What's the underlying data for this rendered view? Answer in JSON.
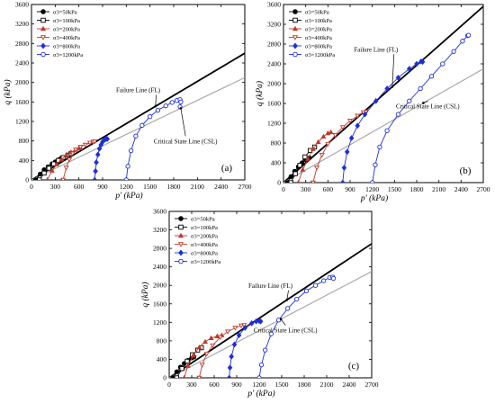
{
  "chart_data": [
    {
      "type": "scatter",
      "panel_label": "(a)",
      "xlabel": "p' (kPa)",
      "ylabel": "q (kPa)",
      "xlim": [
        0,
        2700
      ],
      "ylim": [
        0,
        3600
      ],
      "xticks": [
        "0",
        "300",
        "600",
        "900",
        "1200",
        "1500",
        "1800",
        "2100",
        "2400",
        "2700"
      ],
      "yticks": [
        "0",
        "400",
        "800",
        "1200",
        "1600",
        "2000",
        "2400",
        "2800",
        "3200",
        "3600"
      ],
      "legend": [
        {
          "label": "σ3=50kPa",
          "marker": "filled-circle",
          "color": "#000000"
        },
        {
          "label": "σ3=100kPa",
          "marker": "open-square",
          "color": "#000000"
        },
        {
          "label": "σ3=200kPa",
          "marker": "filled-triangle",
          "color": "#c0392b"
        },
        {
          "label": "σ3=400kPa",
          "marker": "open-triangle-down",
          "color": "#c0392b"
        },
        {
          "label": "σ3=800kPa",
          "marker": "filled-diamond",
          "color": "#1f2fd6"
        },
        {
          "label": "σ3=1200kPa",
          "marker": "open-circle",
          "color": "#1f2fd6"
        }
      ],
      "lines": [
        {
          "name": "Failure Line (FL)",
          "color": "#000000",
          "from": [
            0,
            0
          ],
          "to": [
            2700,
            2600
          ]
        },
        {
          "name": "Critical State Line (CSL)",
          "color": "#aaaaaa",
          "from": [
            0,
            0
          ],
          "to": [
            2700,
            2100
          ]
        }
      ],
      "annotations": [
        {
          "text": "Failure Line (FL)",
          "at": [
            1350,
            1800
          ]
        },
        {
          "text": "Critical State Line (CSL)",
          "at": [
            1950,
            750
          ]
        }
      ],
      "series": [
        {
          "legend": 0,
          "x": [
            50,
            110,
            160,
            210,
            260,
            300,
            350,
            380
          ],
          "y": [
            0,
            120,
            210,
            270,
            330,
            370,
            420,
            450
          ]
        },
        {
          "legend": 1,
          "x": [
            100,
            160,
            220,
            280,
            340,
            400,
            460,
            500
          ],
          "y": [
            0,
            140,
            240,
            330,
            400,
            460,
            510,
            540
          ]
        },
        {
          "legend": 2,
          "x": [
            200,
            260,
            320,
            380,
            440,
            500,
            560,
            600,
            620
          ],
          "y": [
            0,
            190,
            320,
            420,
            510,
            570,
            620,
            650,
            660
          ]
        },
        {
          "legend": 3,
          "x": [
            400,
            440,
            480,
            520,
            560,
            620,
            680,
            740,
            780,
            800
          ],
          "y": [
            0,
            250,
            420,
            540,
            620,
            680,
            720,
            760,
            780,
            790
          ]
        },
        {
          "legend": 4,
          "x": [
            800,
            810,
            820,
            840,
            860,
            880,
            900,
            920,
            940,
            950,
            960
          ],
          "y": [
            0,
            180,
            360,
            520,
            640,
            720,
            780,
            820,
            840,
            850,
            840
          ]
        },
        {
          "legend": 5,
          "x": [
            1200,
            1220,
            1260,
            1320,
            1400,
            1500,
            1600,
            1700,
            1780,
            1840,
            1880,
            1890,
            1880
          ],
          "y": [
            0,
            280,
            600,
            900,
            1120,
            1300,
            1430,
            1520,
            1590,
            1630,
            1650,
            1600,
            1500
          ]
        }
      ]
    },
    {
      "type": "scatter",
      "panel_label": "(b)",
      "xlabel": "p' (kPa)",
      "ylabel": "q (kPa)",
      "xlim": [
        0,
        2700
      ],
      "ylim": [
        0,
        3600
      ],
      "xticks": [
        "0",
        "300",
        "600",
        "900",
        "1200",
        "1500",
        "1800",
        "2100",
        "2400",
        "2700"
      ],
      "yticks": [
        "0",
        "400",
        "800",
        "1200",
        "1600",
        "2000",
        "2400",
        "2800",
        "3200",
        "3600"
      ],
      "legend": [
        {
          "label": "σ3=50kPa",
          "marker": "filled-circle",
          "color": "#000000"
        },
        {
          "label": "σ3=100kPa",
          "marker": "open-square",
          "color": "#000000"
        },
        {
          "label": "σ3=200kPa",
          "marker": "filled-triangle",
          "color": "#c0392b"
        },
        {
          "label": "σ3=400kPa",
          "marker": "open-triangle-down",
          "color": "#c0392b"
        },
        {
          "label": "σ3=800kPa",
          "marker": "filled-diamond",
          "color": "#1f2fd6"
        },
        {
          "label": "σ3=1200kPa",
          "marker": "open-circle",
          "color": "#1f2fd6"
        }
      ],
      "lines": [
        {
          "name": "Failure Line (FL)",
          "color": "#000000",
          "from": [
            0,
            0
          ],
          "to": [
            2700,
            3560
          ]
        },
        {
          "name": "Critical State Line (CSL)",
          "color": "#aaaaaa",
          "from": [
            0,
            0
          ],
          "to": [
            2700,
            2300
          ]
        }
      ],
      "annotations": [
        {
          "text": "Failure Line (FL)",
          "at": [
            1250,
            2650
          ]
        },
        {
          "text": "Critical State Line (CSL)",
          "at": [
            1950,
            1500
          ]
        }
      ],
      "series": [
        {
          "legend": 0,
          "x": [
            50,
            100,
            150,
            200,
            250,
            300,
            350
          ],
          "y": [
            0,
            120,
            230,
            320,
            400,
            460,
            500
          ]
        },
        {
          "legend": 1,
          "x": [
            100,
            160,
            220,
            290,
            360,
            420
          ],
          "y": [
            0,
            180,
            350,
            520,
            650,
            720
          ]
        },
        {
          "legend": 2,
          "x": [
            200,
            260,
            330,
            400,
            470,
            540,
            600,
            640
          ],
          "y": [
            0,
            260,
            480,
            680,
            820,
            930,
            1000,
            1020
          ]
        },
        {
          "legend": 3,
          "x": [
            400,
            450,
            520,
            600,
            700,
            800,
            900,
            1000,
            1080,
            1120
          ],
          "y": [
            0,
            300,
            560,
            780,
            960,
            1120,
            1250,
            1350,
            1420,
            1430
          ]
        },
        {
          "legend": 4,
          "x": [
            800,
            820,
            860,
            920,
            1000,
            1100,
            1250,
            1400,
            1550,
            1700,
            1800,
            1860,
            1880
          ],
          "y": [
            0,
            300,
            620,
            900,
            1150,
            1380,
            1650,
            1900,
            2120,
            2300,
            2400,
            2450,
            2440
          ]
        },
        {
          "legend": 5,
          "x": [
            1200,
            1240,
            1300,
            1400,
            1550,
            1700,
            1850,
            2000,
            2150,
            2300,
            2420,
            2490,
            2500
          ],
          "y": [
            0,
            360,
            720,
            1050,
            1380,
            1650,
            1900,
            2150,
            2400,
            2650,
            2860,
            2970,
            2980
          ]
        }
      ]
    },
    {
      "type": "scatter",
      "panel_label": "(c)",
      "xlabel": "p' (kPa)",
      "ylabel": "q (kPa)",
      "xlim": [
        0,
        2700
      ],
      "ylim": [
        0,
        3600
      ],
      "xticks": [
        "0",
        "300",
        "600",
        "900",
        "1200",
        "1500",
        "1800",
        "2100",
        "2400",
        "2700"
      ],
      "yticks": [
        "0",
        "400",
        "800",
        "1200",
        "1600",
        "2000",
        "2400",
        "2800",
        "3200",
        "3600"
      ],
      "legend": [
        {
          "label": "σ3=50kPa",
          "marker": "filled-circle",
          "color": "#000000"
        },
        {
          "label": "σ3=100kPa",
          "marker": "open-square",
          "color": "#000000"
        },
        {
          "label": "σ3=200kPa",
          "marker": "filled-triangle",
          "color": "#c0392b"
        },
        {
          "label": "σ3=400kPa",
          "marker": "open-triangle-down",
          "color": "#c0392b"
        },
        {
          "label": "σ3=800kPa",
          "marker": "filled-diamond",
          "color": "#1f2fd6"
        },
        {
          "label": "σ3=1200kPa",
          "marker": "open-circle",
          "color": "#1f2fd6"
        }
      ],
      "lines": [
        {
          "name": "Failure Line (FL)",
          "color": "#000000",
          "from": [
            0,
            0
          ],
          "to": [
            2700,
            2900
          ]
        },
        {
          "name": "Critical State Line (CSL)",
          "color": "#aaaaaa",
          "from": [
            0,
            0
          ],
          "to": [
            2700,
            2300
          ]
        }
      ],
      "annotations": [
        {
          "text": "Failure Line (FL)",
          "at": [
            1350,
            1950
          ]
        },
        {
          "text": "Critical State Line (CSL)",
          "at": [
            1550,
            980
          ]
        }
      ],
      "series": [
        {
          "legend": 0,
          "x": [
            50,
            100,
            150,
            200,
            250,
            300,
            330
          ],
          "y": [
            0,
            130,
            230,
            310,
            380,
            430,
            450
          ]
        },
        {
          "legend": 1,
          "x": [
            100,
            170,
            240,
            310,
            380,
            430
          ],
          "y": [
            0,
            200,
            360,
            500,
            600,
            650
          ]
        },
        {
          "legend": 2,
          "x": [
            200,
            250,
            320,
            400,
            480,
            560,
            640,
            700
          ],
          "y": [
            0,
            260,
            480,
            660,
            780,
            860,
            900,
            920
          ]
        },
        {
          "legend": 3,
          "x": [
            400,
            440,
            500,
            580,
            680,
            780,
            880,
            960,
            1000
          ],
          "y": [
            0,
            280,
            520,
            700,
            880,
            1000,
            1080,
            1130,
            1140
          ]
        },
        {
          "legend": 4,
          "x": [
            800,
            810,
            830,
            870,
            930,
            1010,
            1100,
            1160,
            1200,
            1220
          ],
          "y": [
            0,
            220,
            460,
            720,
            920,
            1080,
            1180,
            1220,
            1230,
            1220
          ]
        },
        {
          "legend": 5,
          "x": [
            1200,
            1230,
            1280,
            1360,
            1460,
            1580,
            1700,
            1830,
            1950,
            2060,
            2140,
            2180,
            2190
          ],
          "y": [
            0,
            280,
            600,
            950,
            1250,
            1500,
            1700,
            1880,
            2000,
            2100,
            2170,
            2180,
            2150
          ]
        }
      ]
    }
  ]
}
